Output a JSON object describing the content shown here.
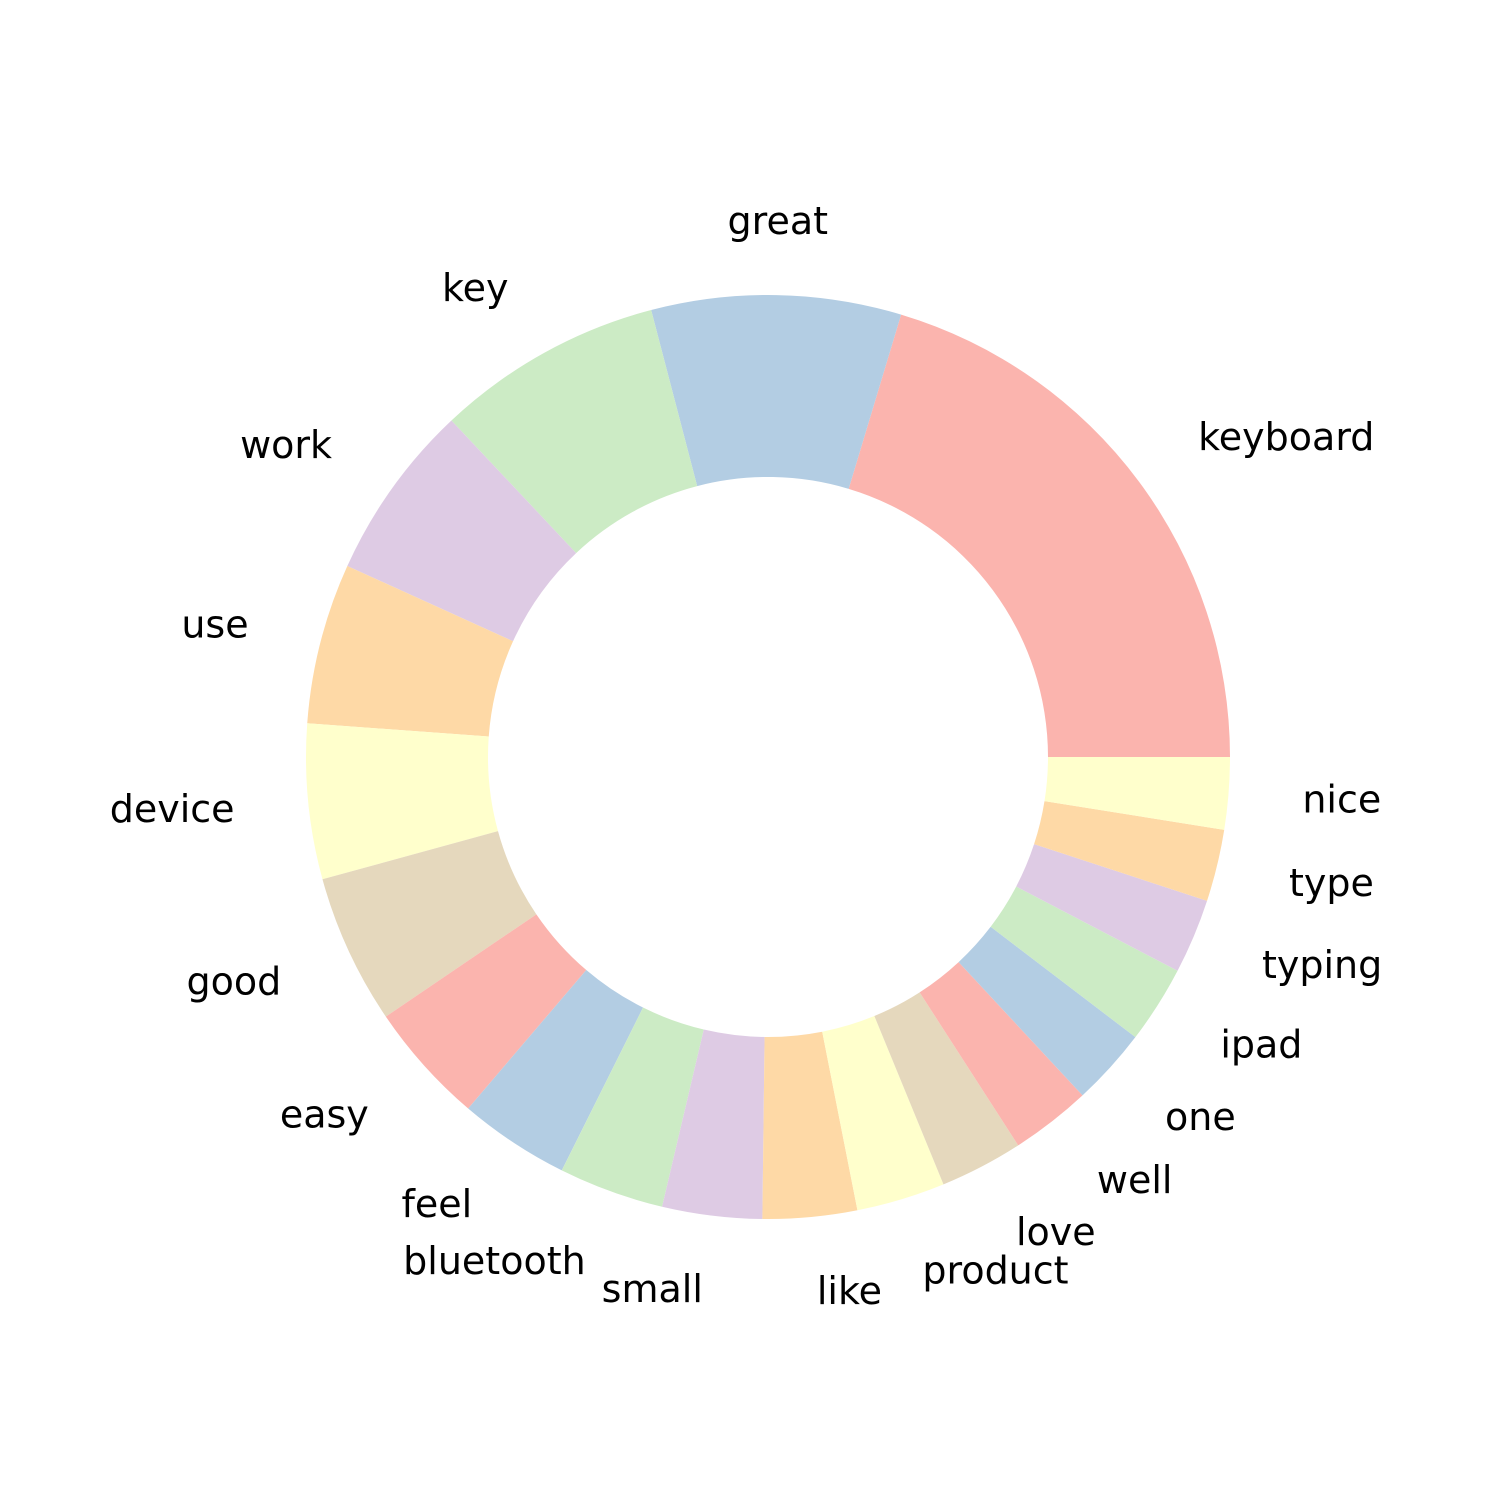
{
  "chart_data": {
    "type": "pie",
    "style": "donut",
    "start_angle_deg": 0,
    "direction": "counterclockwise",
    "categories": [
      "keyboard",
      "great",
      "key",
      "work",
      "use",
      "device",
      "good",
      "easy",
      "feel",
      "bluetooth",
      "small",
      "like",
      "product",
      "love",
      "well",
      "one",
      "ipad",
      "typing",
      "type",
      "nice"
    ],
    "values": [
      1050,
      450,
      410,
      320,
      290,
      280,
      270,
      220,
      200,
      190,
      180,
      170,
      160,
      150,
      145,
      140,
      140,
      135,
      130,
      130
    ],
    "colors": [
      "#fbb4ae",
      "#b3cde3",
      "#ccebc5",
      "#decbe4",
      "#fed9a6",
      "#ffffcc",
      "#e5d8bd",
      "#fbb4ae",
      "#b3cde3",
      "#ccebc5",
      "#decbe4",
      "#fed9a6",
      "#ffffcc",
      "#e5d8bd",
      "#fbb4ae",
      "#b3cde3",
      "#ccebc5",
      "#decbe4",
      "#fed9a6",
      "#ffffcc"
    ],
    "title": "",
    "legend": "none"
  }
}
